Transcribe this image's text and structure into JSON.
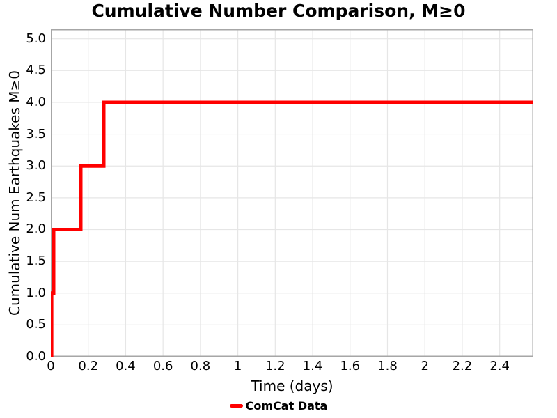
{
  "chart_data": {
    "type": "line",
    "subtype": "step",
    "title": "Cumulative Number Comparison, M≥0",
    "xlabel": "Time (days)",
    "ylabel": "Cumulative Num Earthquakes M≥0",
    "xlim": [
      0,
      2.58
    ],
    "ylim": [
      0,
      5.15
    ],
    "grid": true,
    "legend_position": "bottom-center",
    "xticks": {
      "values": [
        0,
        0.2,
        0.4,
        0.6,
        0.8,
        1,
        1.2,
        1.4,
        1.6,
        1.8,
        2,
        2.2,
        2.4
      ],
      "labels": [
        "0",
        "0.2",
        "0.4",
        "0.6",
        "0.8",
        "1",
        "1.2",
        "1.4",
        "1.6",
        "1.8",
        "2",
        "2.2",
        "2.4"
      ]
    },
    "yticks": {
      "values": [
        0,
        0.5,
        1,
        1.5,
        2,
        2.5,
        3,
        3.5,
        4,
        4.5,
        5
      ],
      "labels": [
        "0.0",
        "0.5",
        "1.0",
        "1.5",
        "2.0",
        "2.5",
        "3.0",
        "3.5",
        "4.0",
        "4.5",
        "5.0"
      ]
    },
    "series": [
      {
        "name": "ComCat Data",
        "color": "#ff0000",
        "linewidth": 5,
        "event_times_days": [
          0.004,
          0.015,
          0.16,
          0.283
        ],
        "cumulative_counts": [
          1,
          2,
          3,
          4
        ],
        "points": [
          [
            0.004,
            0
          ],
          [
            0.004,
            1
          ],
          [
            0.015,
            1
          ],
          [
            0.015,
            2
          ],
          [
            0.16,
            2
          ],
          [
            0.16,
            3
          ],
          [
            0.283,
            3
          ],
          [
            0.283,
            4
          ],
          [
            2.58,
            4
          ]
        ]
      }
    ],
    "colors": {
      "background": "#ffffff",
      "grid": "#e6e6e6",
      "spine": "#a6a6a6",
      "text": "#000000"
    }
  }
}
